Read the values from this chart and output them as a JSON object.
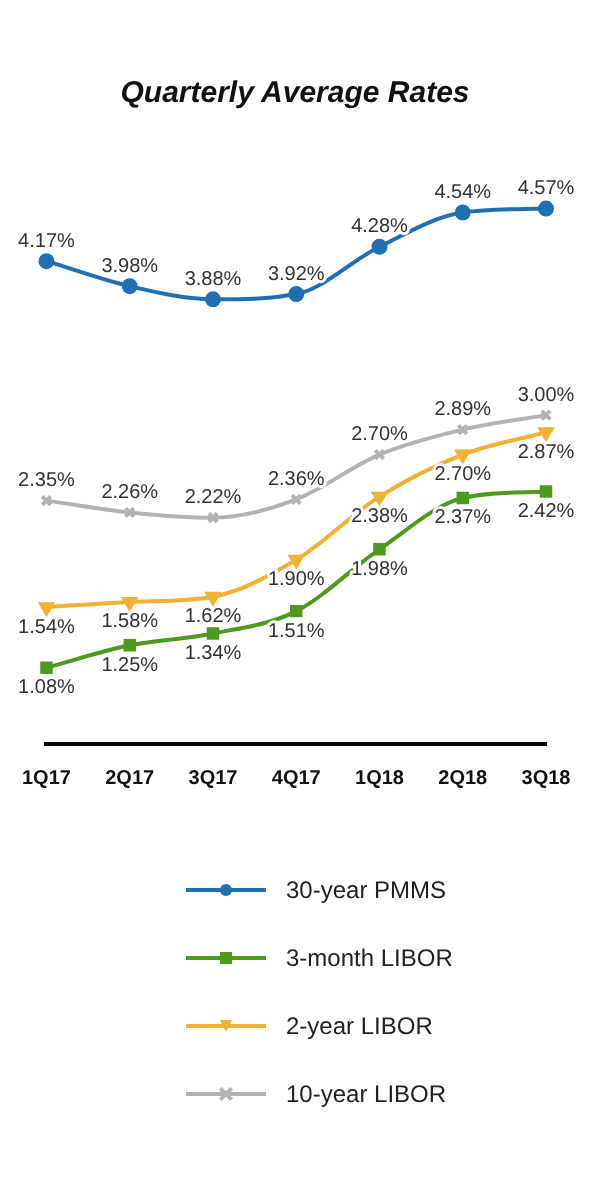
{
  "chart_data": {
    "type": "line",
    "title": "Quarterly Average Rates",
    "categories": [
      "1Q17",
      "2Q17",
      "3Q17",
      "4Q17",
      "1Q18",
      "2Q18",
      "3Q18"
    ],
    "legend": "bottom",
    "grid": false,
    "tick_labels": "x",
    "series": [
      {
        "name": "30-year PMMS",
        "color": "#1f6fb5",
        "marker": "circle",
        "values": [
          4.17,
          3.98,
          3.88,
          3.92,
          4.28,
          4.54,
          4.57
        ],
        "value_labels": [
          "4.17%",
          "3.98%",
          "3.88%",
          "3.92%",
          "4.28%",
          "4.54%",
          "4.57%"
        ]
      },
      {
        "name": "3-month LIBOR",
        "color": "#4e9a1f",
        "marker": "square",
        "values": [
          1.08,
          1.25,
          1.34,
          1.51,
          1.98,
          2.37,
          2.42
        ],
        "value_labels": [
          "1.08%",
          "1.25%",
          "1.34%",
          "1.51%",
          "1.98%",
          "2.37%",
          "2.42%"
        ]
      },
      {
        "name": "2-year LIBOR",
        "color": "#f2b134",
        "marker": "triangle",
        "values": [
          1.54,
          1.58,
          1.62,
          1.9,
          2.38,
          2.7,
          2.87
        ],
        "value_labels": [
          "1.54%",
          "1.58%",
          "1.62%",
          "1.90%",
          "2.38%",
          "2.70%",
          "2.87%"
        ]
      },
      {
        "name": "10-year LIBOR",
        "color": "#b3b3b3",
        "marker": "cross",
        "values": [
          2.35,
          2.26,
          2.22,
          2.36,
          2.7,
          2.89,
          3.0
        ],
        "value_labels": [
          "2.35%",
          "2.26%",
          "2.22%",
          "2.36%",
          "2.70%",
          "2.89%",
          "3.00%"
        ]
      }
    ]
  }
}
